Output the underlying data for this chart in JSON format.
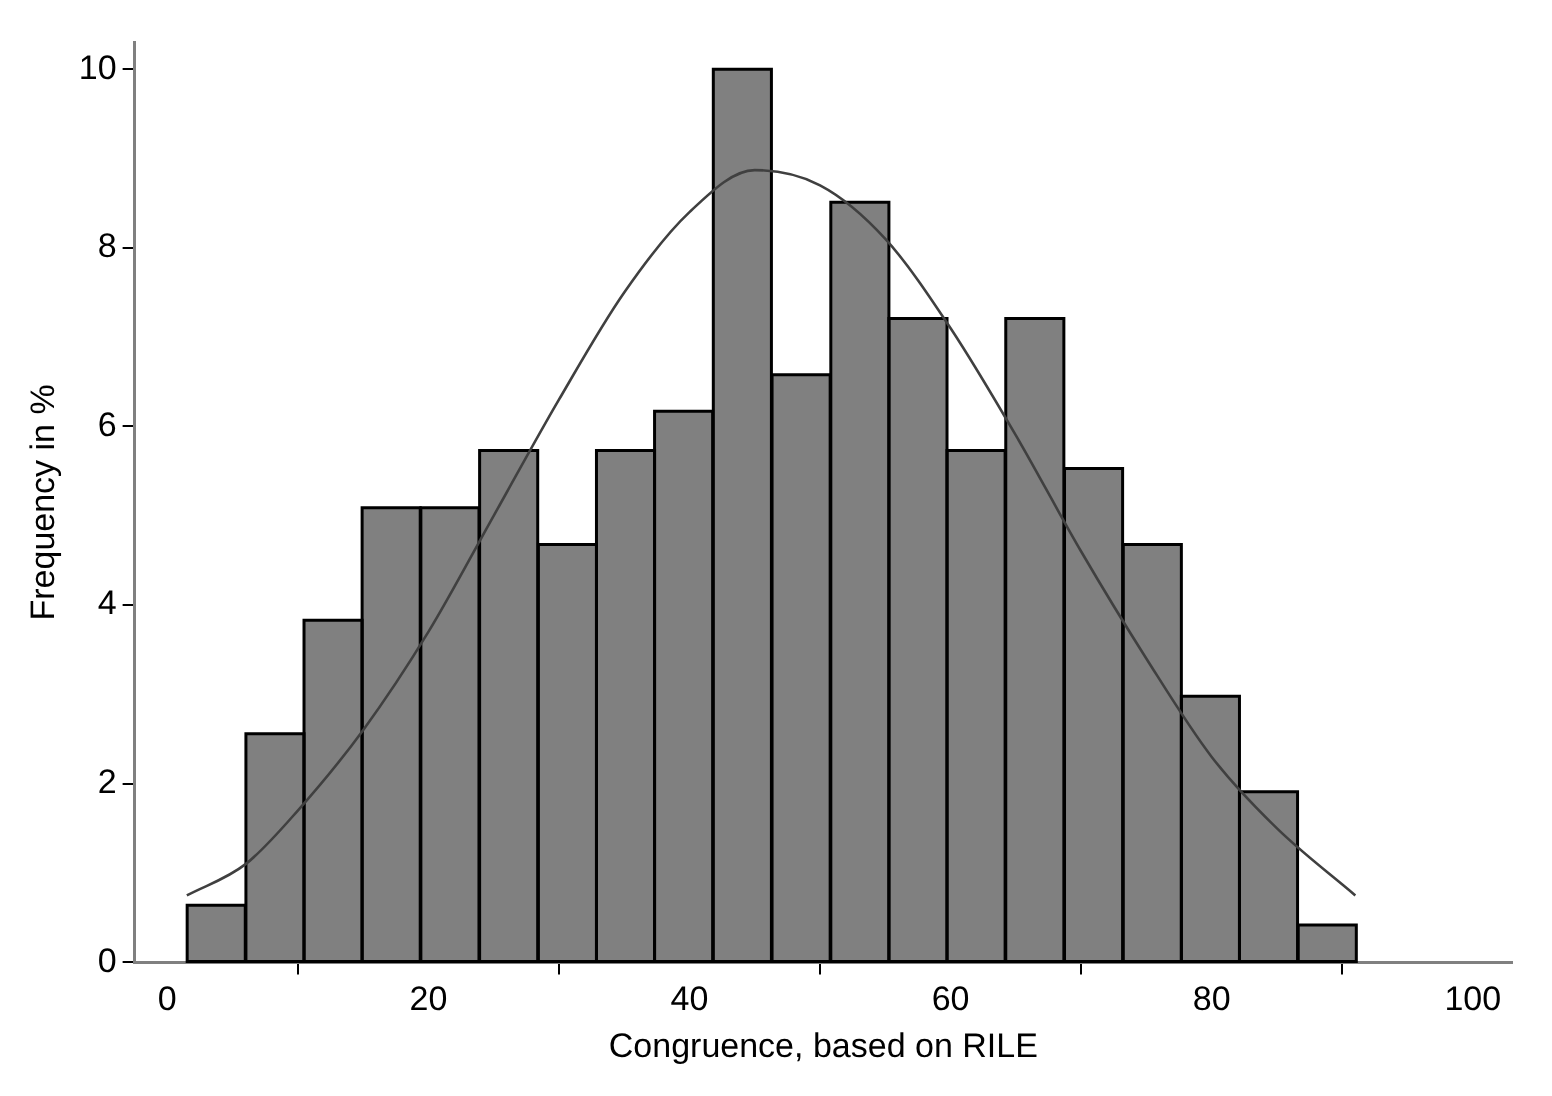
{
  "chart_data": {
    "type": "histogram",
    "xlabel": "Congruence, based on RILE",
    "ylabel": "Frequency in %",
    "bins": [
      1.5,
      6.0,
      10.5,
      14.9,
      19.4,
      23.9,
      28.4,
      32.9,
      37.3,
      41.8,
      46.3,
      50.8,
      55.3,
      59.7,
      64.2,
      68.7,
      73.2,
      77.7,
      82.1,
      86.6,
      91.1
    ],
    "values": [
      0.64,
      2.56,
      3.83,
      5.09,
      5.09,
      5.73,
      4.68,
      5.73,
      6.17,
      10.0,
      6.58,
      8.51,
      7.21,
      5.73,
      7.21,
      5.53,
      4.68,
      2.98,
      1.91,
      0.42
    ],
    "color": "#808080",
    "series": [
      {
        "type": "line",
        "color": "#404040",
        "x": [
          1.5,
          6,
          10,
          15,
          20,
          25,
          30,
          35,
          40,
          45,
          50,
          55,
          60,
          65,
          70,
          75,
          80,
          85,
          91
        ],
        "values": [
          0.75,
          1.1,
          1.7,
          2.6,
          3.7,
          5.0,
          6.3,
          7.5,
          8.4,
          8.87,
          8.7,
          8.1,
          7.1,
          5.9,
          4.6,
          3.4,
          2.3,
          1.5,
          0.75
        ]
      }
    ],
    "xlim": [
      -2.5,
      103
    ],
    "xticks": [
      0,
      20,
      40,
      60,
      80,
      100
    ],
    "ylim": [
      0,
      10.3
    ],
    "yticks": [
      0,
      2,
      4,
      6,
      8,
      10
    ],
    "grid": false,
    "legend": false,
    "marker": "none",
    "line_style": "solid"
  }
}
